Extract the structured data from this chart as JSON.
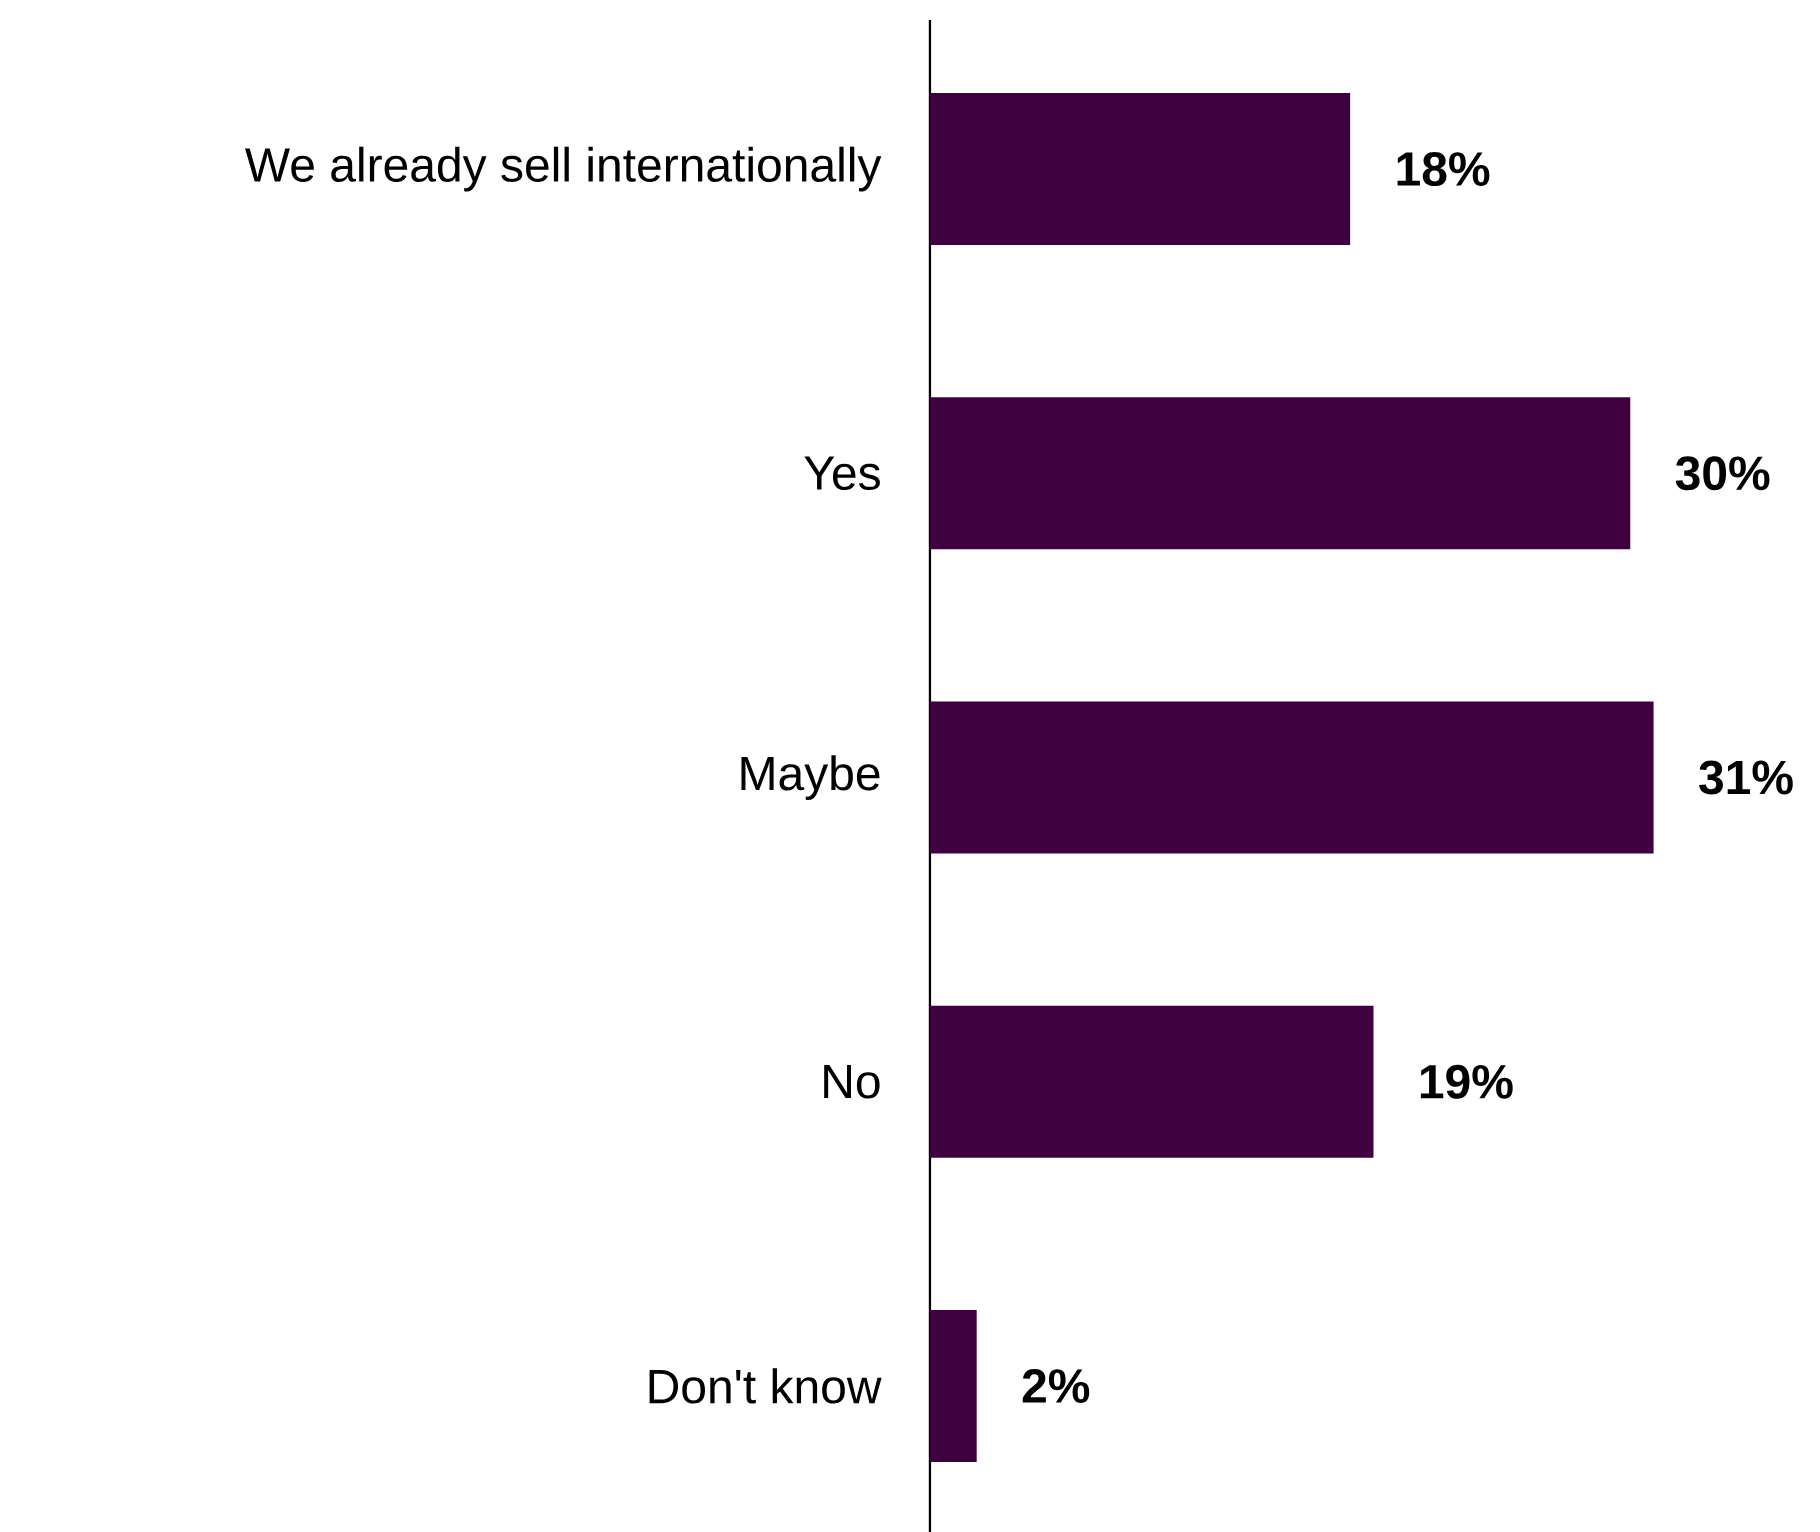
{
  "chart_data": {
    "type": "bar",
    "orientation": "horizontal",
    "categories": [
      "We already sell internationally",
      "Yes",
      "Maybe",
      "No",
      "Don't know"
    ],
    "values": [
      18,
      30,
      31,
      19,
      2
    ],
    "value_labels": [
      "18%",
      "30%",
      "31%",
      "19%",
      "2%"
    ],
    "color": "#3f0040"
  }
}
